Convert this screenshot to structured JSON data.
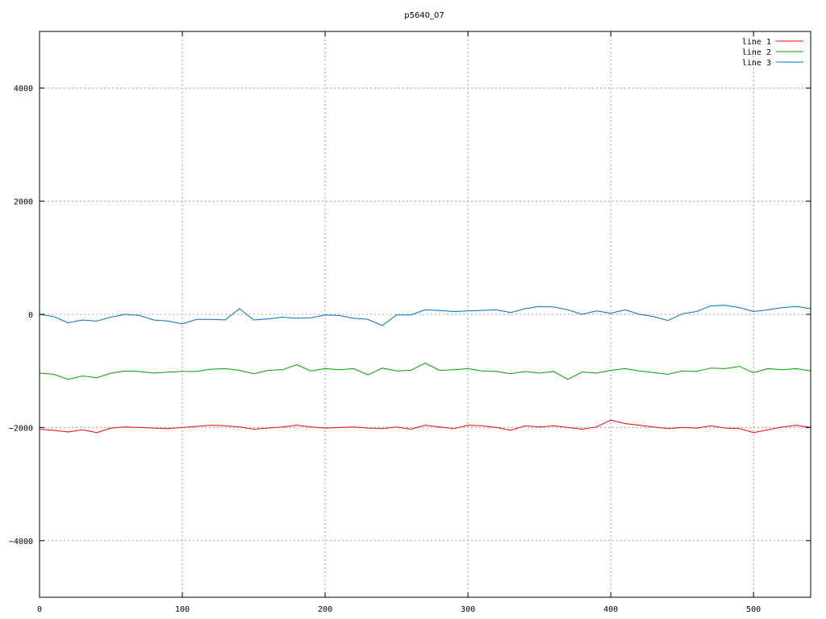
{
  "chart_data": {
    "type": "line",
    "title": "p5640_07",
    "xlabel": "",
    "ylabel": "",
    "xlim": [
      0,
      540
    ],
    "ylim": [
      -5000,
      5000
    ],
    "xticks": [
      0,
      100,
      200,
      300,
      400,
      500
    ],
    "yticks": [
      -4000,
      -2000,
      0,
      2000,
      4000
    ],
    "xtick_labels": [
      "0",
      "100",
      "200",
      "300",
      "400",
      "500"
    ],
    "ytick_labels": [
      "−4000",
      "−2000",
      "0",
      "2000",
      "4000"
    ],
    "grid": true,
    "legend_position": "top-right",
    "series": [
      {
        "name": "line 1",
        "color": "#ff0000",
        "x": [
          0,
          10,
          20,
          30,
          40,
          50,
          60,
          70,
          80,
          90,
          100,
          110,
          120,
          130,
          140,
          150,
          160,
          170,
          180,
          190,
          200,
          210,
          220,
          230,
          240,
          250,
          260,
          270,
          280,
          290,
          300,
          310,
          320,
          330,
          340,
          350,
          360,
          370,
          380,
          390,
          400,
          410,
          420,
          430,
          440,
          450,
          460,
          470,
          480,
          490,
          500,
          510,
          520,
          530,
          540
        ],
        "y": [
          -2030,
          -2050,
          -2080,
          -2040,
          -2090,
          -2010,
          -1990,
          -2000,
          -2010,
          -2020,
          -2000,
          -1980,
          -1960,
          -1970,
          -1990,
          -2030,
          -2010,
          -1990,
          -1960,
          -1990,
          -2010,
          -2000,
          -1990,
          -2010,
          -2020,
          -1990,
          -2030,
          -1960,
          -1990,
          -2020,
          -1960,
          -1970,
          -2000,
          -2050,
          -1970,
          -1990,
          -1970,
          -2000,
          -2030,
          -1990,
          -1870,
          -1930,
          -1960,
          -1990,
          -2020,
          -2000,
          -2010,
          -1970,
          -2010,
          -2020,
          -2090,
          -2040,
          -1990,
          -1960,
          -2000
        ]
      },
      {
        "name": "line 2",
        "color": "#00a000",
        "x": [
          0,
          10,
          20,
          30,
          40,
          50,
          60,
          70,
          80,
          90,
          100,
          110,
          120,
          130,
          140,
          150,
          160,
          170,
          180,
          190,
          200,
          210,
          220,
          230,
          240,
          250,
          260,
          270,
          280,
          290,
          300,
          310,
          320,
          330,
          340,
          350,
          360,
          370,
          380,
          390,
          400,
          410,
          420,
          430,
          440,
          450,
          460,
          470,
          480,
          490,
          500,
          510,
          520,
          530,
          540
        ],
        "y": [
          -1040,
          -1060,
          -1150,
          -1090,
          -1120,
          -1040,
          -1000,
          -1010,
          -1040,
          -1020,
          -1010,
          -1010,
          -970,
          -960,
          -990,
          -1050,
          -990,
          -980,
          -890,
          -1000,
          -960,
          -980,
          -960,
          -1070,
          -950,
          -1000,
          -990,
          -860,
          -990,
          -980,
          -960,
          -1000,
          -1010,
          -1050,
          -1010,
          -1040,
          -1010,
          -1150,
          -1020,
          -1040,
          -990,
          -960,
          -1000,
          -1030,
          -1060,
          -1000,
          -1010,
          -950,
          -960,
          -920,
          -1030,
          -960,
          -980,
          -960,
          -1000
        ]
      },
      {
        "name": "line 3",
        "color": "#0070c0",
        "x": [
          0,
          10,
          20,
          30,
          40,
          50,
          60,
          70,
          80,
          90,
          100,
          110,
          120,
          130,
          140,
          150,
          160,
          170,
          180,
          190,
          200,
          210,
          220,
          230,
          240,
          250,
          260,
          270,
          280,
          290,
          300,
          310,
          320,
          330,
          340,
          350,
          360,
          370,
          380,
          390,
          400,
          410,
          420,
          430,
          440,
          450,
          460,
          470,
          480,
          490,
          500,
          510,
          520,
          530,
          540
        ],
        "y": [
          0,
          -40,
          -150,
          -100,
          -120,
          -50,
          0,
          -20,
          -100,
          -120,
          -170,
          -90,
          -90,
          -100,
          100,
          -100,
          -80,
          -50,
          -70,
          -60,
          -10,
          -20,
          -70,
          -90,
          -200,
          -10,
          -10,
          80,
          70,
          50,
          60,
          70,
          80,
          30,
          100,
          140,
          130,
          80,
          0,
          60,
          20,
          80,
          0,
          -40,
          -110,
          10,
          50,
          150,
          160,
          120,
          50,
          80,
          120,
          140,
          100
        ]
      }
    ]
  }
}
